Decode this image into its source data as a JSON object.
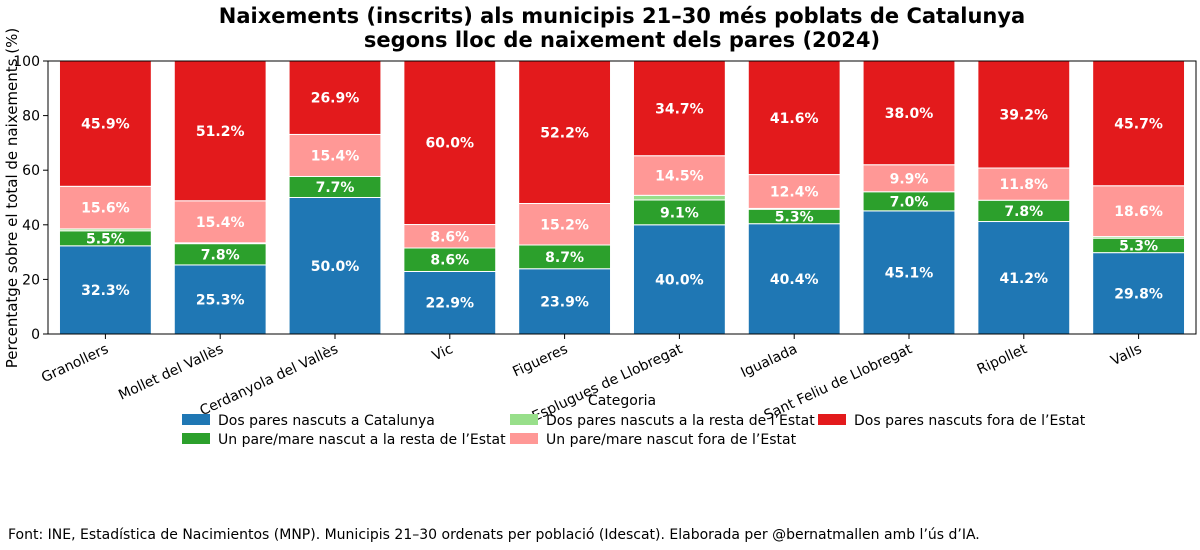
{
  "chart_data": {
    "type": "bar",
    "stacked": true,
    "title_line1": "Naixements (inscrits) als municipis 21–30 més poblats de Catalunya",
    "title_line2": "segons lloc de naixement dels pares (2024)",
    "ylabel": "Percentatge sobre el total de naixements (%)",
    "xlabel": "",
    "ylim": [
      0,
      100
    ],
    "yticks": [
      0,
      20,
      40,
      60,
      80,
      100
    ],
    "grid": false,
    "legend_title": "Categoria",
    "legend_placement": "bottom-center",
    "categories": [
      "Granollers",
      "Mollet del Vallès",
      "Cerdanyola del Vallès",
      "Vic",
      "Figueres",
      "Esplugues de Llobregat",
      "Igualada",
      "Sant Feliu de Llobregat",
      "Ripollet",
      "Valls"
    ],
    "series": [
      {
        "name": "Dos pares nascuts a Catalunya",
        "color": "#1f77b4",
        "values": [
          32.3,
          25.3,
          50.0,
          22.9,
          23.9,
          40.0,
          40.4,
          45.1,
          41.2,
          29.8
        ],
        "labels": [
          "32.3%",
          "25.3%",
          "50.0%",
          "22.9%",
          "23.9%",
          "40.0%",
          "40.4%",
          "45.1%",
          "41.2%",
          "29.8%"
        ]
      },
      {
        "name": "Un pare/mare nascut a la resta de l’Estat",
        "color": "#2ca02c",
        "values": [
          5.5,
          7.8,
          7.7,
          8.6,
          8.7,
          9.1,
          5.3,
          7.0,
          7.8,
          5.3
        ],
        "labels": [
          "5.5%",
          "7.8%",
          "7.7%",
          "8.6%",
          "8.7%",
          "9.1%",
          "5.3%",
          "7.0%",
          "7.8%",
          "5.3%"
        ]
      },
      {
        "name": "Dos pares nascuts a la resta de l’Estat",
        "color": "#98df8a",
        "values": [
          0.7,
          0.3,
          0.0,
          0.0,
          0.0,
          1.7,
          0.3,
          0.0,
          0.0,
          0.6
        ],
        "labels": [
          "",
          "",
          "",
          "",
          "",
          "",
          "",
          "",
          "",
          ""
        ]
      },
      {
        "name": "Un pare/mare nascut fora de l’Estat",
        "color": "#ff9896",
        "values": [
          15.6,
          15.4,
          15.4,
          8.6,
          15.2,
          14.5,
          12.4,
          9.9,
          11.8,
          18.6
        ],
        "labels": [
          "15.6%",
          "15.4%",
          "15.4%",
          "8.6%",
          "15.2%",
          "14.5%",
          "12.4%",
          "9.9%",
          "11.8%",
          "18.6%"
        ]
      },
      {
        "name": "Dos pares nascuts fora de l’Estat",
        "color": "#e31a1c",
        "values": [
          45.9,
          51.2,
          26.9,
          60.0,
          52.2,
          34.7,
          41.6,
          38.0,
          39.2,
          45.7
        ],
        "labels": [
          "45.9%",
          "51.2%",
          "26.9%",
          "60.0%",
          "52.2%",
          "34.7%",
          "41.6%",
          "38.0%",
          "39.2%",
          "45.7%"
        ]
      }
    ]
  },
  "footer": {
    "source": "Font: INE, Estadística de Nacimientos (MNP). Municipis 21–30 ordenats per població (Idescat). Elaborada per @bernatmallen amb l’ús d’IA."
  }
}
